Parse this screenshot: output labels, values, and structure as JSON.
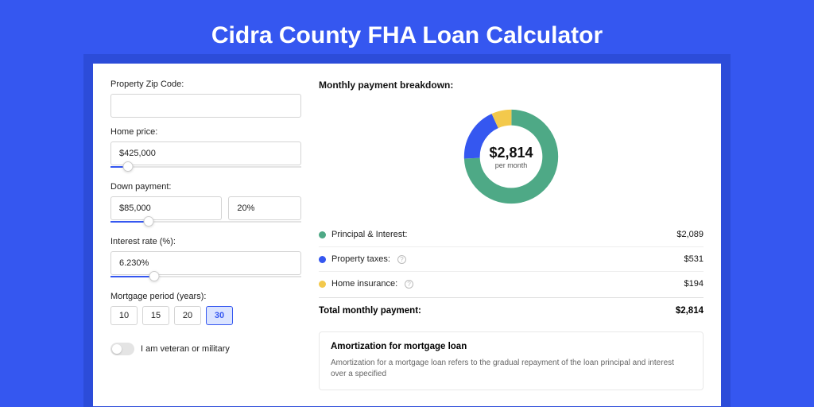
{
  "page": {
    "title": "Cidra County FHA Loan Calculator",
    "background_color": "#3557f0",
    "accent_color": "#3557f0"
  },
  "form": {
    "zip": {
      "label": "Property Zip Code:",
      "value": ""
    },
    "home_price": {
      "label": "Home price:",
      "value": "$425,000",
      "slider_pct": 9
    },
    "down_payment": {
      "label": "Down payment:",
      "amount": "$85,000",
      "percent": "20%",
      "slider_pct": 20
    },
    "interest_rate": {
      "label": "Interest rate (%):",
      "value": "6.230%",
      "slider_pct": 23
    },
    "mortgage_period": {
      "label": "Mortgage period (years):",
      "options": [
        "10",
        "15",
        "20",
        "30"
      ],
      "selected": "30"
    },
    "veteran": {
      "label": "I am veteran or military",
      "checked": false
    }
  },
  "breakdown": {
    "title": "Monthly payment breakdown:",
    "center_amount": "$2,814",
    "center_sub": "per month",
    "donut": {
      "segments": [
        {
          "label": "Principal & Interest:",
          "value_text": "$2,089",
          "value": 2089,
          "color": "#4ea986",
          "has_info": false
        },
        {
          "label": "Property taxes:",
          "value_text": "$531",
          "value": 531,
          "color": "#3557f0",
          "has_info": true
        },
        {
          "label": "Home insurance:",
          "value_text": "$194",
          "value": 194,
          "color": "#f3c94c",
          "has_info": true
        }
      ],
      "thickness": 20,
      "background": "#ffffff"
    },
    "total": {
      "label": "Total monthly payment:",
      "value": "$2,814"
    }
  },
  "amortization": {
    "title": "Amortization for mortgage loan",
    "text": "Amortization for a mortgage loan refers to the gradual repayment of the loan principal and interest over a specified"
  }
}
